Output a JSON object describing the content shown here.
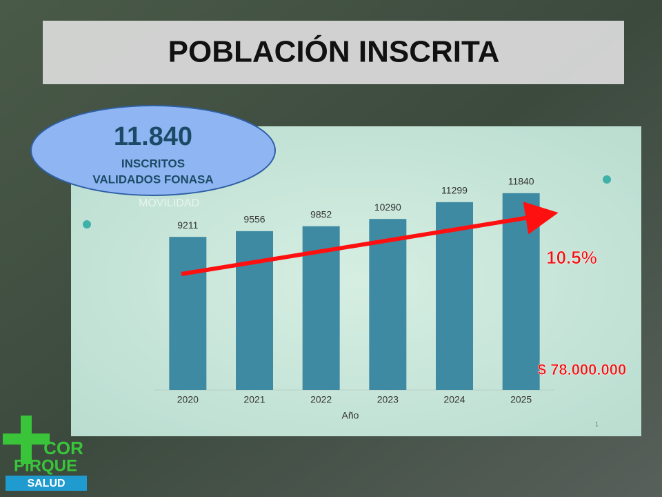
{
  "title": "POBLACIÓN INSCRITA",
  "highlight": {
    "value": "11.840",
    "line1": "INSCRITOS",
    "line2": "VALIDADOS FONASA"
  },
  "annotations": {
    "growth": "10.5%",
    "amount": "$ 78.000.000"
  },
  "watermark": "MOVILIDAD",
  "page_number": "1",
  "logo": {
    "line1": "COR",
    "line2": "PIRQUE",
    "line3": "SALUD"
  },
  "chart_data": {
    "type": "bar",
    "x_label": "Año",
    "categories": [
      "2020",
      "2021",
      "2022",
      "2023",
      "2024",
      "2025"
    ],
    "values": [
      9211,
      9556,
      9852,
      10290,
      11299,
      11840
    ],
    "color": "#3f8aa3",
    "ylim": [
      0,
      12000
    ]
  }
}
